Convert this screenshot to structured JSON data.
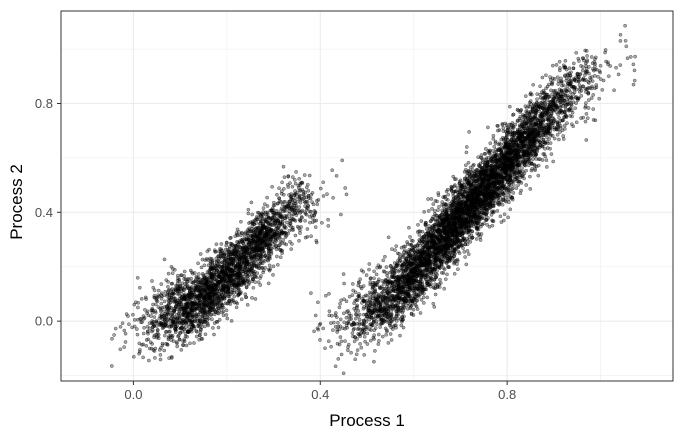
{
  "chart_data": {
    "type": "scatter",
    "title": "",
    "xlabel": "Process 1",
    "ylabel": "Process 2",
    "xlim": [
      -0.155,
      1.155
    ],
    "ylim": [
      -0.22,
      1.14
    ],
    "x_ticks": [
      {
        "value": 0.0,
        "label": "0.0"
      },
      {
        "value": 0.4,
        "label": "0.4"
      },
      {
        "value": 0.8,
        "label": "0.8"
      }
    ],
    "y_ticks": [
      {
        "value": 0.0,
        "label": "0.0"
      },
      {
        "value": 0.4,
        "label": "0.4"
      },
      {
        "value": 0.8,
        "label": "0.8"
      }
    ],
    "grid": true,
    "legend": "none",
    "point_color": "#000000",
    "point_alpha": 0.35,
    "clusters": [
      {
        "description_only_for_generation": false,
        "n_points": 2600,
        "x_range": [
          -0.08,
          0.48
        ],
        "curve": [
          [
            -0.08,
            -0.03
          ],
          [
            0.05,
            0.0
          ],
          [
            0.15,
            0.08
          ],
          [
            0.25,
            0.25
          ],
          [
            0.35,
            0.42
          ],
          [
            0.48,
            0.48
          ]
        ],
        "spread": 0.06
      },
      {
        "description_only_for_generation": false,
        "n_points": 5200,
        "x_range": [
          0.32,
          1.12
        ],
        "curve": [
          [
            0.32,
            0.0
          ],
          [
            0.45,
            -0.01
          ],
          [
            0.55,
            0.08
          ],
          [
            0.65,
            0.28
          ],
          [
            0.75,
            0.48
          ],
          [
            0.85,
            0.68
          ],
          [
            0.95,
            0.87
          ],
          [
            1.05,
            0.95
          ],
          [
            1.12,
            0.94
          ]
        ],
        "spread": 0.065
      }
    ]
  }
}
